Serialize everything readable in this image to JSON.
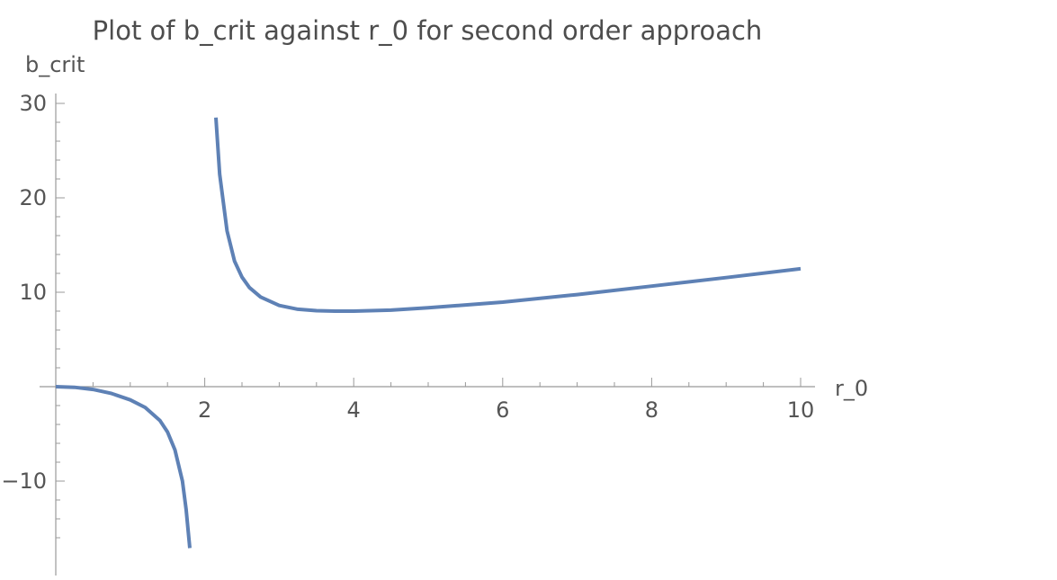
{
  "chart_data": {
    "type": "line",
    "title": "Plot of b_crit against r_0 for second order approach",
    "xlabel": "r_0",
    "ylabel": "b_crit",
    "xlim": [
      0,
      10
    ],
    "ylim": [
      -17.5,
      30
    ],
    "x_ticks": [
      2,
      4,
      6,
      8,
      10
    ],
    "x_tick_labels": [
      "2",
      "4",
      "6",
      "8",
      "10"
    ],
    "y_ticks": [
      -10,
      10,
      20,
      30
    ],
    "y_tick_labels": [
      "−10",
      "10",
      "20",
      "30"
    ],
    "grid": false,
    "color": "#5e81b5",
    "series": [
      {
        "x": [
          0,
          0.25,
          0.5,
          0.75,
          1.0,
          1.2,
          1.4,
          1.5,
          1.6,
          1.7,
          1.75,
          1.8
        ],
        "y": [
          0,
          -0.07,
          -0.3,
          -0.72,
          -1.4,
          -2.2,
          -3.6,
          -4.8,
          -6.7,
          -10,
          -13,
          -17.1
        ]
      },
      {
        "x": [
          2.15,
          2.2,
          2.3,
          2.4,
          2.5,
          2.6,
          2.75,
          3.0,
          3.25,
          3.5,
          3.75,
          4.0,
          4.5,
          5.0,
          6.0,
          7.0,
          8.0,
          9.0,
          10.0
        ],
        "y": [
          28.5,
          22.5,
          16.5,
          13.3,
          11.6,
          10.5,
          9.5,
          8.6,
          8.2,
          8.05,
          8.0,
          8.0,
          8.1,
          8.35,
          8.95,
          9.75,
          10.65,
          11.55,
          12.5
        ]
      }
    ]
  }
}
